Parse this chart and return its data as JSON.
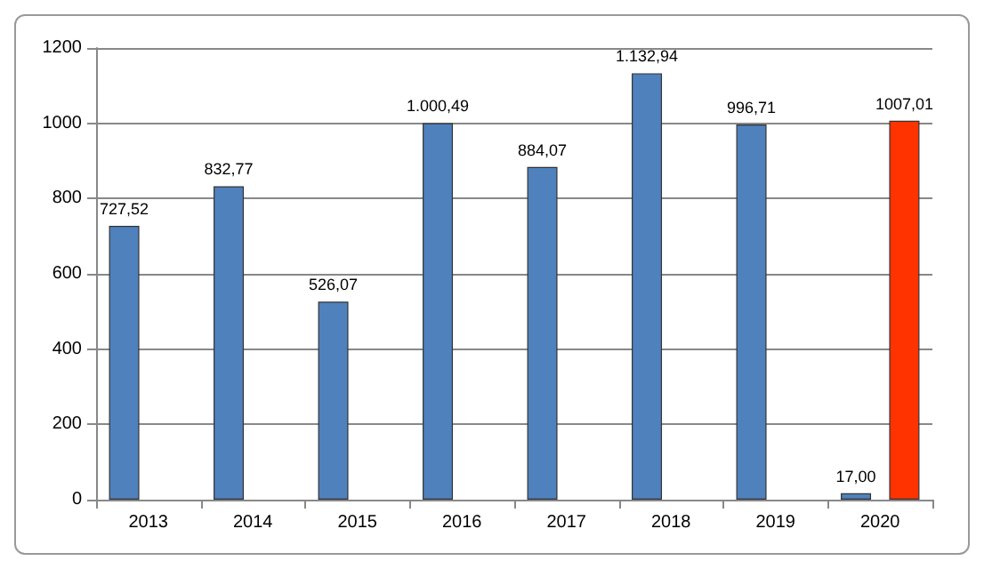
{
  "chart_data": {
    "type": "bar",
    "categories": [
      "2013",
      "2014",
      "2015",
      "2016",
      "2017",
      "2018",
      "2019",
      "2020"
    ],
    "series": [
      {
        "color": "#4f81bd",
        "values": [
          727.52,
          832.77,
          526.07,
          1000.49,
          884.07,
          1132.94,
          996.71,
          17.0
        ],
        "value_labels": [
          "727,52",
          "832,77",
          "526,07",
          "1.000,49",
          "884,07",
          "1.132,94",
          "996,71",
          "17,00"
        ]
      },
      {
        "color": "#ff3300",
        "values": [
          null,
          null,
          null,
          null,
          null,
          null,
          null,
          1007.01
        ],
        "value_labels": [
          null,
          null,
          null,
          null,
          null,
          null,
          null,
          "1007,01"
        ]
      }
    ],
    "ylim": [
      0,
      1200
    ],
    "yticks": [
      0,
      200,
      400,
      600,
      800,
      1000,
      1200
    ],
    "grid": "y"
  }
}
